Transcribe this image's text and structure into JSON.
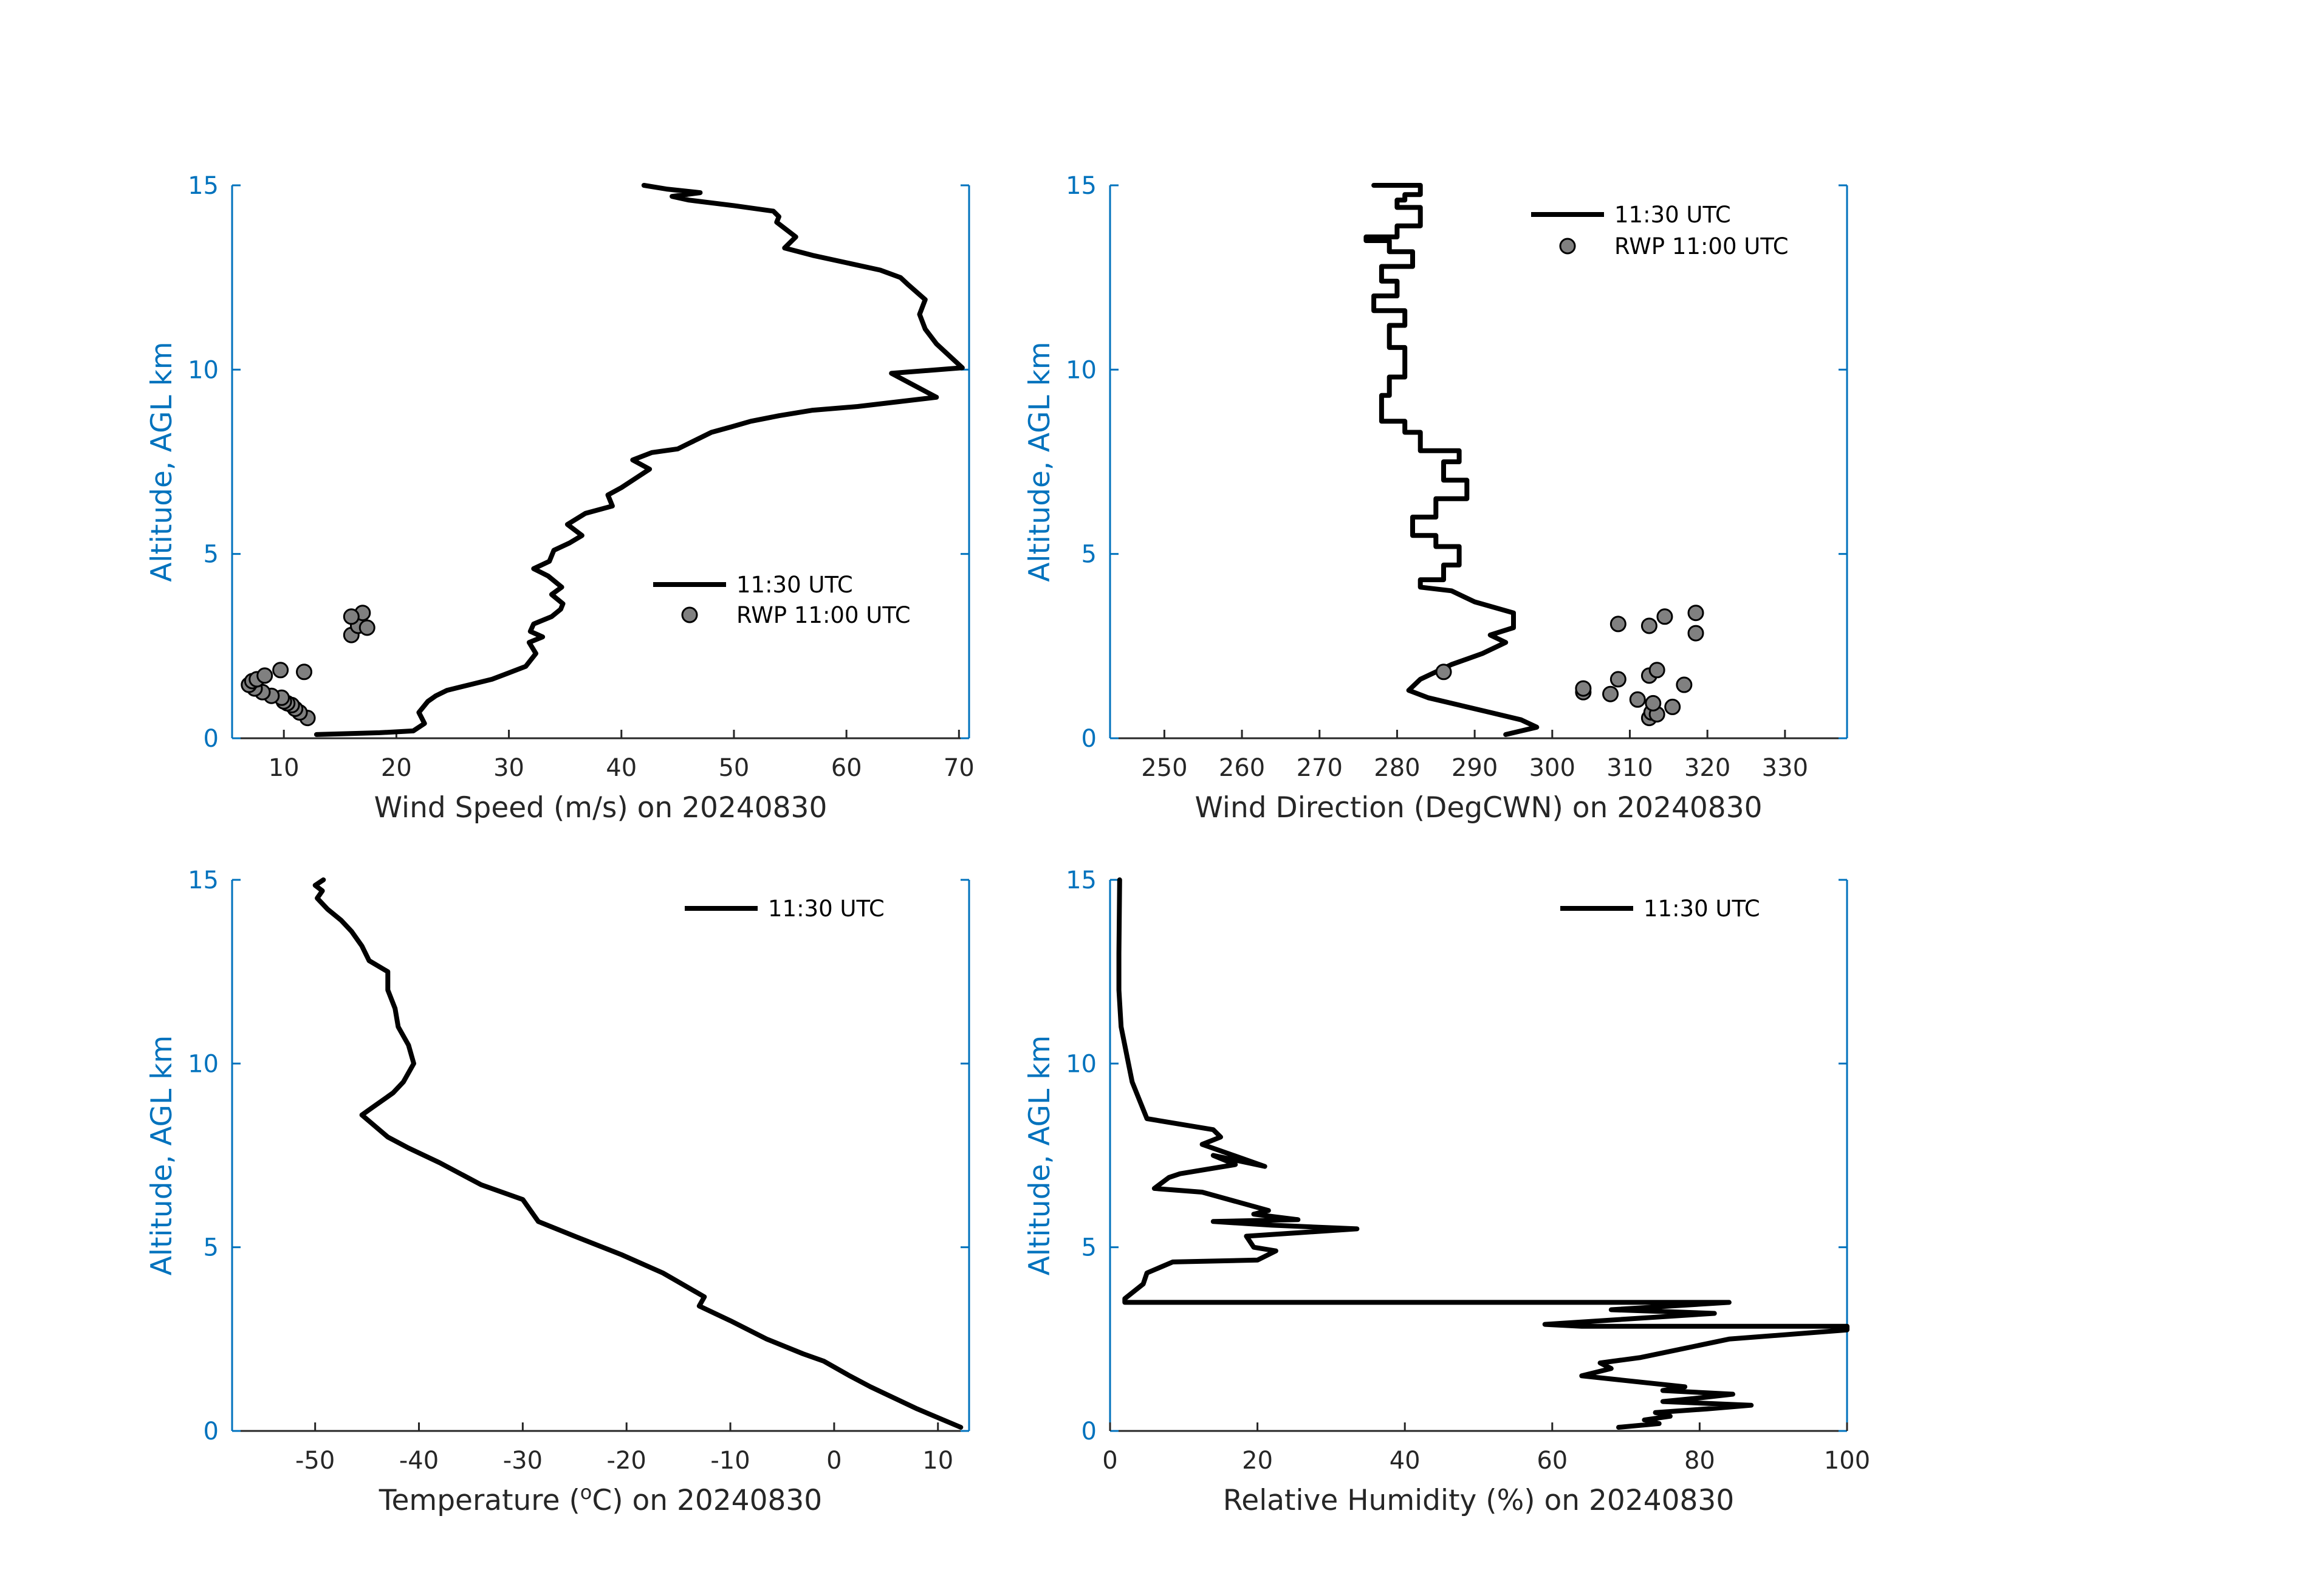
{
  "chart_data": [
    {
      "type": "line",
      "ylabel": "Altitude, AGL km",
      "xlabel_main": "Wind Speed (m/s) on 20240830",
      "xlabel_super": "",
      "xlabel_after": "",
      "xlim": [
        5.4,
        70.9
      ],
      "ylim": [
        0,
        15
      ],
      "xticks": [
        10,
        20,
        30,
        40,
        50,
        60,
        70
      ],
      "yticks": [
        0,
        5,
        10,
        15
      ],
      "legend_position": "middle-right",
      "series": [
        {
          "name": "11:30 UTC",
          "kind": "line",
          "x": [
            12.9,
            18.5,
            21.5,
            22.5,
            22.0,
            22.8,
            23.5,
            24.5,
            26.5,
            28.5,
            29.8,
            31.5,
            32.4,
            31.8,
            33.0,
            31.9,
            32.2,
            33.8,
            34.6,
            34.8,
            33.8,
            34.7,
            33.5,
            32.2,
            33.6,
            34.0,
            35.4,
            36.5,
            35.2,
            36.8,
            39.2,
            38.8,
            40.0,
            41.5,
            42.5,
            41.0,
            42.7,
            45.0,
            46.0,
            47.0,
            48.0,
            49.8,
            51.5,
            54.0,
            57.0,
            61.0,
            68.0,
            64.0,
            70.3,
            68.0,
            67.0,
            66.5,
            67.0,
            65.5,
            64.8,
            63.0,
            60.0,
            57.0,
            54.5,
            55.5,
            53.8,
            54.0,
            53.5,
            50.0,
            46.0,
            44.5,
            47.0,
            44.0,
            42.0
          ],
          "y": [
            0.1,
            0.15,
            0.2,
            0.4,
            0.7,
            1.0,
            1.15,
            1.3,
            1.45,
            1.6,
            1.75,
            1.95,
            2.3,
            2.6,
            2.75,
            2.9,
            3.1,
            3.3,
            3.5,
            3.65,
            3.9,
            4.1,
            4.4,
            4.6,
            4.8,
            5.1,
            5.3,
            5.5,
            5.8,
            6.1,
            6.3,
            6.6,
            6.8,
            7.1,
            7.3,
            7.55,
            7.75,
            7.85,
            8.0,
            8.15,
            8.3,
            8.45,
            8.6,
            8.75,
            8.9,
            9.0,
            9.25,
            9.9,
            10.05,
            10.7,
            11.1,
            11.5,
            11.9,
            12.3,
            12.5,
            12.7,
            12.9,
            13.1,
            13.3,
            13.6,
            14.0,
            14.15,
            14.3,
            14.45,
            14.6,
            14.7,
            14.8,
            14.9,
            15.0
          ]
        },
        {
          "name": "RWP 11:00 UTC",
          "kind": "points",
          "color": "#808080",
          "x": [
            12.1,
            11.4,
            11.0,
            10.7,
            10.3,
            10.0,
            9.8,
            8.9,
            8.1,
            7.4,
            6.9,
            7.2,
            7.6,
            8.3,
            9.7,
            11.8,
            16.0,
            16.6,
            17.4,
            17.0,
            16.0
          ],
          "y": [
            0.55,
            0.7,
            0.8,
            0.9,
            0.95,
            1.0,
            1.1,
            1.15,
            1.25,
            1.35,
            1.45,
            1.55,
            1.6,
            1.7,
            1.85,
            1.8,
            2.8,
            3.05,
            3.0,
            3.4,
            3.3
          ]
        }
      ]
    },
    {
      "type": "line",
      "ylabel": "Altitude, AGL km",
      "xlabel_main": "Wind Direction (DegCWN) on 20240830",
      "xlabel_super": "",
      "xlabel_after": "",
      "xlim": [
        243,
        338
      ],
      "ylim": [
        0,
        15
      ],
      "xticks": [
        250,
        260,
        270,
        280,
        290,
        300,
        310,
        320,
        330
      ],
      "yticks": [
        0,
        5,
        10,
        15
      ],
      "legend_position": "top-right",
      "series": [
        {
          "name": "11:30 UTC",
          "kind": "line",
          "step": true,
          "x": [
            294,
            298,
            296,
            292,
            288,
            284,
            281.5,
            283,
            287,
            291,
            294,
            292,
            295,
            295,
            290,
            287,
            283,
            283,
            286,
            286,
            288,
            288,
            285,
            285,
            282,
            282,
            285,
            285,
            289,
            289,
            286,
            286,
            288,
            288,
            283,
            283,
            281,
            281,
            278,
            278,
            279,
            279,
            281,
            281,
            279,
            279,
            281,
            281,
            277,
            277,
            280,
            280,
            278,
            278,
            282,
            282,
            279,
            279,
            276,
            276,
            280,
            280,
            283,
            283,
            280,
            280,
            281,
            281,
            283,
            283,
            277
          ],
          "y": [
            0.1,
            0.3,
            0.5,
            0.7,
            0.9,
            1.1,
            1.3,
            1.6,
            2.0,
            2.3,
            2.6,
            2.8,
            3.0,
            3.4,
            3.7,
            4.0,
            4.1,
            4.3,
            4.3,
            4.7,
            4.7,
            5.2,
            5.2,
            5.5,
            5.5,
            6.0,
            6.0,
            6.5,
            6.5,
            7.0,
            7.0,
            7.5,
            7.5,
            7.8,
            7.8,
            8.3,
            8.3,
            8.6,
            8.6,
            9.3,
            9.3,
            9.8,
            9.8,
            10.6,
            10.6,
            11.2,
            11.2,
            11.6,
            11.6,
            12.0,
            12.0,
            12.4,
            12.4,
            12.8,
            12.8,
            13.2,
            13.2,
            13.5,
            13.5,
            13.6,
            13.6,
            13.9,
            13.9,
            14.4,
            14.4,
            14.6,
            14.6,
            14.75,
            14.75,
            15.0,
            15.0
          ]
        },
        {
          "name": "RWP 11:00 UTC",
          "kind": "points",
          "color": "#808080",
          "x": [
            312.5,
            312.8,
            313.5,
            315.5,
            311,
            307.5,
            304,
            304,
            317,
            308.5,
            312.5,
            313.5,
            286,
            308.5,
            312.5,
            314.5,
            318.5,
            318.5,
            313
          ],
          "y": [
            0.55,
            0.7,
            0.65,
            0.85,
            1.05,
            1.2,
            1.25,
            1.35,
            1.45,
            1.6,
            1.7,
            1.85,
            1.8,
            3.1,
            3.05,
            3.3,
            3.4,
            2.85,
            0.95
          ]
        }
      ]
    },
    {
      "type": "line",
      "ylabel": "Altitude, AGL km",
      "xlabel_main": "Temperature (",
      "xlabel_super": "o",
      "xlabel_after": "C) on 20240830",
      "xlim": [
        -58,
        13
      ],
      "ylim": [
        0,
        15
      ],
      "xticks": [
        -50,
        -40,
        -30,
        -20,
        -10,
        0,
        10
      ],
      "yticks": [
        0,
        5,
        10,
        15
      ],
      "legend_position": "top-right",
      "series": [
        {
          "name": "11:30 UTC",
          "kind": "line",
          "x": [
            12.2,
            8.0,
            3.5,
            1.5,
            -1.0,
            -3.0,
            -6.5,
            -10.0,
            -13.0,
            -12.5,
            -16.5,
            -20.5,
            -25.0,
            -28.5,
            -30.0,
            -34.0,
            -38.0,
            -41.0,
            -43.0,
            -45.5,
            -44.5,
            -42.5,
            -41.5,
            -40.5,
            -41.0,
            -42.0,
            -42.3,
            -43.0,
            -43.0,
            -44.8,
            -45.5,
            -46.5,
            -47.5,
            -48.8,
            -49.8,
            -49.3,
            -50.0,
            -49.2
          ],
          "y": [
            0.1,
            0.6,
            1.2,
            1.5,
            1.9,
            2.1,
            2.5,
            3.0,
            3.4,
            3.65,
            4.3,
            4.8,
            5.3,
            5.7,
            6.3,
            6.7,
            7.3,
            7.7,
            8.0,
            8.6,
            8.8,
            9.2,
            9.5,
            10.0,
            10.5,
            11.0,
            11.5,
            12.0,
            12.5,
            12.8,
            13.2,
            13.6,
            13.9,
            14.2,
            14.5,
            14.7,
            14.85,
            15.0
          ]
        }
      ]
    },
    {
      "type": "line",
      "ylabel": "Altitude, AGL km",
      "xlabel_main": "Relative Humidity (%) on 20240830",
      "xlabel_super": "",
      "xlabel_after": "",
      "xlim": [
        0,
        100
      ],
      "ylim": [
        0,
        15
      ],
      "xticks": [
        0,
        20,
        40,
        60,
        80,
        100
      ],
      "yticks": [
        0,
        5,
        10,
        15
      ],
      "legend_position": "top-right",
      "series": [
        {
          "name": "11:30 UTC",
          "kind": "line",
          "x": [
            69.0,
            74.5,
            72.5,
            76.0,
            74.0,
            81.0,
            87.0,
            75.0,
            80.0,
            84.5,
            75.0,
            78.0,
            64.0,
            68.0,
            66.5,
            72.0,
            84.0,
            100.0,
            100.0,
            64.0,
            59.0,
            82.0,
            68.0,
            84.0,
            2.0,
            2.0,
            4.5,
            5.0,
            8.5,
            20.0,
            22.5,
            19.5,
            18.5,
            33.5,
            22.0,
            14.0,
            25.5,
            19.5,
            21.5,
            12.5,
            6.0,
            8.0,
            9.5,
            17.0,
            14.0,
            21.0,
            12.5,
            15.0,
            14.0,
            5.0,
            4.0,
            3.0,
            2.5,
            1.5,
            1.2,
            1.2,
            1.3
          ],
          "y": [
            0.1,
            0.2,
            0.3,
            0.4,
            0.5,
            0.6,
            0.7,
            0.8,
            0.9,
            1.0,
            1.1,
            1.2,
            1.5,
            1.7,
            1.85,
            2.0,
            2.5,
            2.75,
            2.85,
            2.85,
            2.9,
            3.2,
            3.3,
            3.5,
            3.5,
            3.6,
            4.0,
            4.3,
            4.6,
            4.65,
            4.9,
            5.0,
            5.3,
            5.5,
            5.6,
            5.7,
            5.75,
            5.9,
            6.0,
            6.5,
            6.6,
            6.9,
            7.0,
            7.25,
            7.5,
            7.2,
            7.8,
            8.0,
            8.2,
            8.5,
            9.0,
            9.5,
            10.0,
            11.0,
            12.0,
            13.0,
            15.0
          ]
        }
      ]
    }
  ]
}
